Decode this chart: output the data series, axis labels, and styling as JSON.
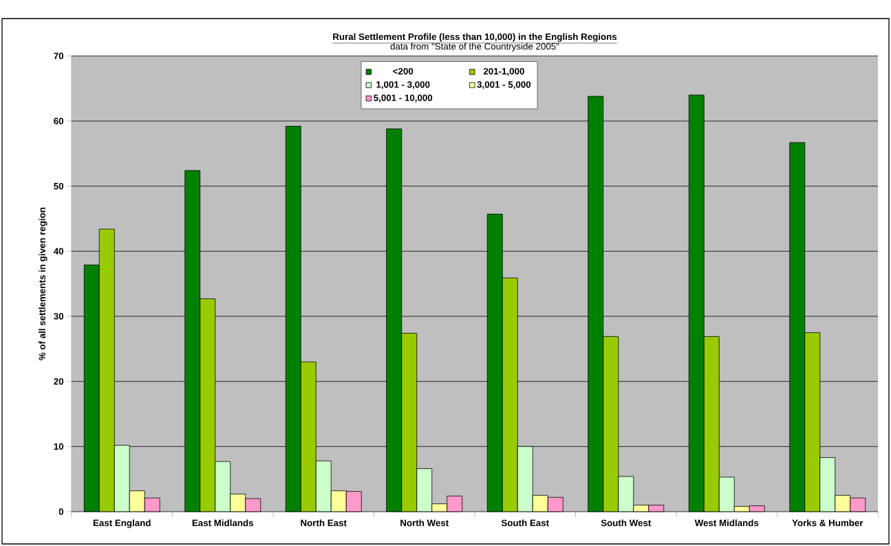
{
  "chart_data": {
    "type": "bar",
    "title": "Rural Settlement Profile (less than 10,000) in the English Regions",
    "subtitle": "data from \"State of the Countryside 2005\"",
    "ylabel": "% of all settlements in given region",
    "categories": [
      "East England",
      "East Midlands",
      "North East",
      "North West",
      "South East",
      "South West",
      "West Midlands",
      "Yorks & Humber"
    ],
    "series": [
      {
        "name": "<200",
        "color": "#008000",
        "values": [
          37.9,
          52.4,
          59.2,
          58.8,
          45.7,
          63.8,
          64.0,
          56.7
        ]
      },
      {
        "name": "201-1,000",
        "color": "#99cc00",
        "values": [
          43.4,
          32.7,
          23.0,
          27.4,
          35.9,
          26.9,
          26.9,
          27.5
        ]
      },
      {
        "name": "1,001 - 3,000",
        "color": "#ccffcc",
        "values": [
          10.2,
          7.7,
          7.8,
          6.6,
          10.0,
          5.4,
          5.3,
          8.3
        ]
      },
      {
        "name": "3,001 - 5,000",
        "color": "#ffff99",
        "values": [
          3.2,
          2.7,
          3.2,
          1.2,
          2.5,
          1.0,
          0.8,
          2.5
        ]
      },
      {
        "name": "5,001 - 10,000",
        "color": "#ff99cc",
        "values": [
          2.1,
          2.0,
          3.1,
          2.4,
          2.2,
          1.0,
          0.9,
          2.1
        ]
      }
    ],
    "ylim": [
      0,
      70
    ],
    "yticks": [
      0,
      10,
      20,
      30,
      40,
      50,
      60,
      70
    ],
    "grid": "y",
    "legend": "top"
  }
}
